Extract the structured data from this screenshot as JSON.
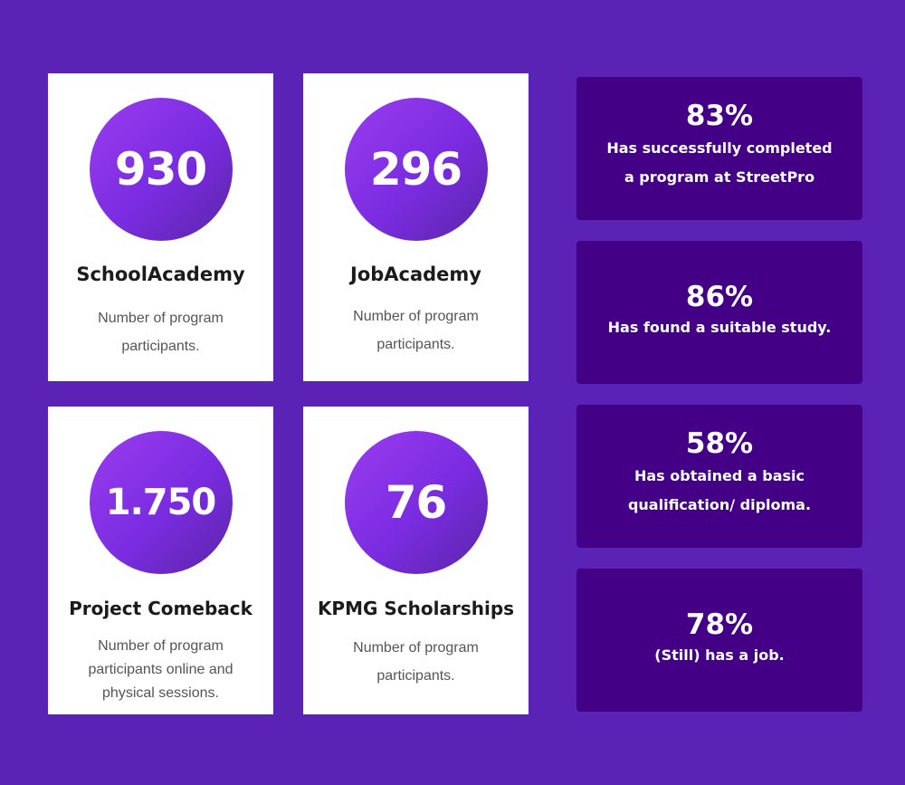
{
  "programs": [
    {
      "number": "930",
      "title": "SchoolAcademy",
      "description": "Number of program participants."
    },
    {
      "number": "296",
      "title": "JobAcademy",
      "description": "Number of program participants."
    },
    {
      "number": "1.750",
      "title": "Project Comeback",
      "description": "Number of program participants online and physical sessions."
    },
    {
      "number": "76",
      "title": "KPMG Scholarships",
      "description": "Number of program participants."
    }
  ],
  "stats": [
    {
      "percent": "83%",
      "label": "Has successfully completed a program at StreetPro"
    },
    {
      "percent": "86%",
      "label": "Has found a suitable study."
    },
    {
      "percent": "58%",
      "label": "Has obtained a basic qualification/ diploma."
    },
    {
      "percent": "78%",
      "label": "(Still) has a job."
    }
  ],
  "colors": {
    "background": "#5b22b6",
    "stat_card": "#430087",
    "circle_start": "#9a3cf0",
    "circle_end": "#5a25a8",
    "card": "#ffffff"
  }
}
